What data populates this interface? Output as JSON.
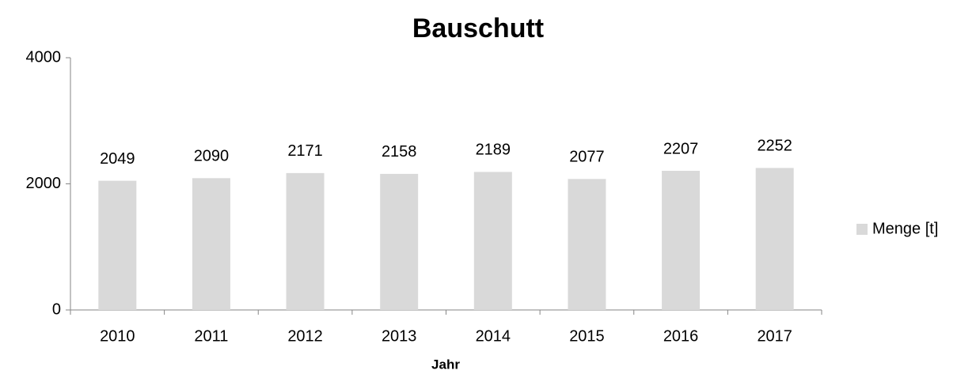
{
  "chart_data": {
    "type": "bar",
    "title": "Bauschutt",
    "xlabel": "Jahr",
    "categories": [
      "2010",
      "2011",
      "2012",
      "2013",
      "2014",
      "2015",
      "2016",
      "2017"
    ],
    "series": [
      {
        "name": "Menge [t]",
        "color": "#d9d9d9",
        "values": [
          2049,
          2090,
          2171,
          2158,
          2189,
          2077,
          2207,
          2252
        ]
      }
    ],
    "ylim": [
      0,
      4000
    ],
    "yticks": [
      0,
      2000,
      4000
    ],
    "grid": false,
    "legend": "right"
  }
}
